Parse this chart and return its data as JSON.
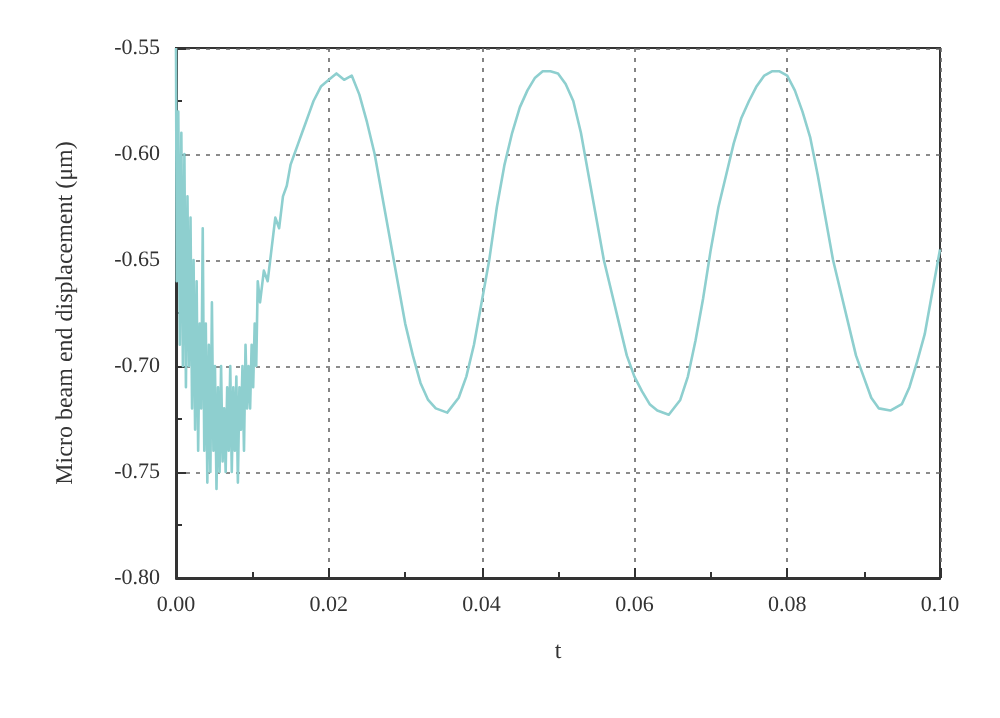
{
  "chart_data": {
    "type": "line",
    "xlabel": "t",
    "ylabel": "Micro beam end displacement (μm)",
    "xlim": [
      0,
      0.1
    ],
    "ylim": [
      -0.8,
      -0.55
    ],
    "xticks": [
      {
        "value": 0,
        "label": "0.00"
      },
      {
        "value": 0.02,
        "label": "0.02"
      },
      {
        "value": 0.04,
        "label": "0.04"
      },
      {
        "value": 0.06,
        "label": "0.06"
      },
      {
        "value": 0.08,
        "label": "0.08"
      },
      {
        "value": 0.1,
        "label": "0.10"
      }
    ],
    "yticks": [
      {
        "value": -0.8,
        "label": "-0.80"
      },
      {
        "value": -0.75,
        "label": "-0.75"
      },
      {
        "value": -0.7,
        "label": "-0.70"
      },
      {
        "value": -0.65,
        "label": "-0.65"
      },
      {
        "value": -0.6,
        "label": "-0.60"
      },
      {
        "value": -0.55,
        "label": "-0.55"
      }
    ],
    "grid": true,
    "marker": "none",
    "line_style": "solid",
    "series": [
      {
        "color": "#8ecfcf",
        "x": [
          0,
          0.0001,
          0.0003,
          0.0005,
          0.0007,
          0.0009,
          0.0011,
          0.0013,
          0.0015,
          0.0017,
          0.0019,
          0.0021,
          0.0023,
          0.0025,
          0.0027,
          0.0029,
          0.0031,
          0.0033,
          0.0035,
          0.0037,
          0.0039,
          0.0041,
          0.0043,
          0.0045,
          0.0047,
          0.0049,
          0.0051,
          0.0053,
          0.0055,
          0.0057,
          0.0059,
          0.0061,
          0.0063,
          0.0065,
          0.0067,
          0.0069,
          0.0071,
          0.0073,
          0.0075,
          0.0077,
          0.0079,
          0.0081,
          0.0083,
          0.0085,
          0.0087,
          0.0089,
          0.0091,
          0.0093,
          0.0095,
          0.0097,
          0.0099,
          0.0101,
          0.0103,
          0.0105,
          0.0107,
          0.011,
          0.0115,
          0.012,
          0.0125,
          0.013,
          0.0135,
          0.014,
          0.0145,
          0.015,
          0.0155,
          0.016,
          0.0165,
          0.017,
          0.0175,
          0.018,
          0.019,
          0.02,
          0.021,
          0.022,
          0.023,
          0.024,
          0.025,
          0.026,
          0.027,
          0.028,
          0.029,
          0.03,
          0.031,
          0.032,
          0.033,
          0.034,
          0.0355,
          0.037,
          0.038,
          0.039,
          0.04,
          0.041,
          0.042,
          0.043,
          0.044,
          0.045,
          0.046,
          0.047,
          0.048,
          0.049,
          0.05,
          0.051,
          0.052,
          0.053,
          0.054,
          0.055,
          0.056,
          0.057,
          0.058,
          0.059,
          0.06,
          0.061,
          0.062,
          0.063,
          0.0645,
          0.066,
          0.067,
          0.068,
          0.069,
          0.07,
          0.071,
          0.072,
          0.073,
          0.074,
          0.075,
          0.076,
          0.077,
          0.078,
          0.079,
          0.08,
          0.081,
          0.082,
          0.083,
          0.084,
          0.085,
          0.086,
          0.087,
          0.088,
          0.089,
          0.09,
          0.091,
          0.092,
          0.0935,
          0.095,
          0.096,
          0.097,
          0.098,
          0.099,
          0.1
        ],
        "values": [
          -0.55,
          -0.66,
          -0.58,
          -0.69,
          -0.59,
          -0.7,
          -0.6,
          -0.71,
          -0.62,
          -0.7,
          -0.63,
          -0.72,
          -0.65,
          -0.73,
          -0.66,
          -0.74,
          -0.68,
          -0.72,
          -0.635,
          -0.74,
          -0.68,
          -0.755,
          -0.69,
          -0.75,
          -0.67,
          -0.74,
          -0.7,
          -0.758,
          -0.71,
          -0.75,
          -0.7,
          -0.745,
          -0.72,
          -0.75,
          -0.71,
          -0.74,
          -0.7,
          -0.75,
          -0.71,
          -0.74,
          -0.705,
          -0.755,
          -0.71,
          -0.73,
          -0.7,
          -0.74,
          -0.69,
          -0.72,
          -0.7,
          -0.72,
          -0.69,
          -0.71,
          -0.68,
          -0.7,
          -0.66,
          -0.67,
          -0.655,
          -0.66,
          -0.645,
          -0.63,
          -0.635,
          -0.62,
          -0.615,
          -0.605,
          -0.6,
          -0.595,
          -0.59,
          -0.585,
          -0.58,
          -0.575,
          -0.568,
          -0.565,
          -0.562,
          -0.565,
          -0.563,
          -0.572,
          -0.585,
          -0.6,
          -0.62,
          -0.64,
          -0.66,
          -0.68,
          -0.695,
          -0.708,
          -0.716,
          -0.72,
          -0.722,
          -0.715,
          -0.705,
          -0.69,
          -0.67,
          -0.65,
          -0.625,
          -0.605,
          -0.59,
          -0.578,
          -0.57,
          -0.564,
          -0.561,
          -0.561,
          -0.562,
          -0.567,
          -0.575,
          -0.59,
          -0.61,
          -0.63,
          -0.65,
          -0.665,
          -0.68,
          -0.695,
          -0.705,
          -0.712,
          -0.718,
          -0.721,
          -0.723,
          -0.716,
          -0.705,
          -0.688,
          -0.668,
          -0.645,
          -0.625,
          -0.61,
          -0.595,
          -0.583,
          -0.575,
          -0.568,
          -0.563,
          -0.561,
          -0.561,
          -0.563,
          -0.57,
          -0.58,
          -0.592,
          -0.61,
          -0.63,
          -0.65,
          -0.665,
          -0.68,
          -0.695,
          -0.705,
          -0.715,
          -0.72,
          -0.721,
          -0.718,
          -0.71,
          -0.698,
          -0.685,
          -0.665,
          -0.645
        ]
      }
    ]
  }
}
